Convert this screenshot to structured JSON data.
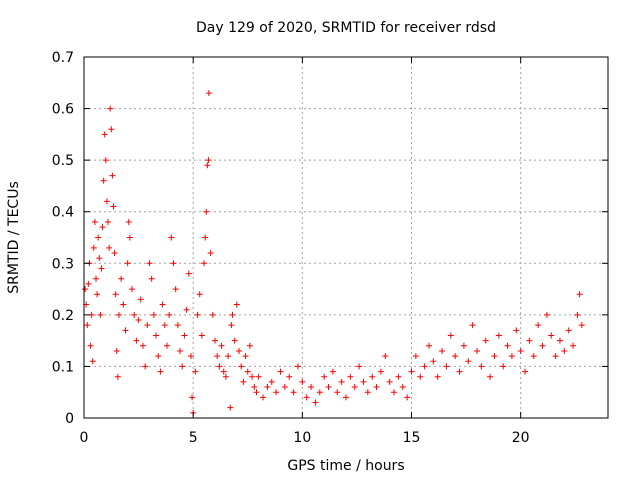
{
  "chart_data": {
    "type": "scatter",
    "title": "Day 129 of 2020, SRMTID for receiver rdsd",
    "xlabel": "GPS time / hours",
    "ylabel": "SRMTID / TECUs",
    "xlim": [
      0,
      24
    ],
    "ylim": [
      0,
      0.7
    ],
    "xticks": [
      0,
      5,
      10,
      15,
      20
    ],
    "xtick_labels": [
      "0",
      "5",
      "10",
      "15",
      "20"
    ],
    "yticks": [
      0,
      0.1,
      0.2,
      0.3,
      0.4,
      0.5,
      0.6,
      0.7
    ],
    "ytick_labels": [
      "0",
      "0.1",
      "0.2",
      "0.3",
      "0.4",
      "0.5",
      "0.6",
      "0.7"
    ],
    "grid": true,
    "marker": "+",
    "colors": {
      "series": "#ff0000",
      "grid": "#a0a0a0",
      "axis": "#000000"
    },
    "series": [
      {
        "name": "SRMTID",
        "points": [
          [
            0.05,
            0.25
          ],
          [
            0.1,
            0.22
          ],
          [
            0.15,
            0.18
          ],
          [
            0.2,
            0.26
          ],
          [
            0.25,
            0.3
          ],
          [
            0.3,
            0.14
          ],
          [
            0.35,
            0.2
          ],
          [
            0.4,
            0.11
          ],
          [
            0.45,
            0.33
          ],
          [
            0.5,
            0.38
          ],
          [
            0.55,
            0.27
          ],
          [
            0.6,
            0.24
          ],
          [
            0.65,
            0.35
          ],
          [
            0.7,
            0.31
          ],
          [
            0.75,
            0.2
          ],
          [
            0.8,
            0.29
          ],
          [
            0.85,
            0.37
          ],
          [
            0.9,
            0.46
          ],
          [
            0.95,
            0.55
          ],
          [
            1.0,
            0.5
          ],
          [
            1.05,
            0.42
          ],
          [
            1.1,
            0.38
          ],
          [
            1.15,
            0.33
          ],
          [
            1.2,
            0.6
          ],
          [
            1.25,
            0.56
          ],
          [
            1.3,
            0.47
          ],
          [
            1.35,
            0.41
          ],
          [
            1.4,
            0.32
          ],
          [
            1.45,
            0.24
          ],
          [
            1.5,
            0.13
          ],
          [
            1.55,
            0.08
          ],
          [
            1.6,
            0.2
          ],
          [
            1.7,
            0.27
          ],
          [
            1.8,
            0.22
          ],
          [
            1.9,
            0.17
          ],
          [
            2.0,
            0.3
          ],
          [
            2.05,
            0.38
          ],
          [
            2.1,
            0.35
          ],
          [
            2.2,
            0.25
          ],
          [
            2.3,
            0.2
          ],
          [
            2.4,
            0.15
          ],
          [
            2.5,
            0.19
          ],
          [
            2.6,
            0.23
          ],
          [
            2.7,
            0.14
          ],
          [
            2.8,
            0.1
          ],
          [
            2.9,
            0.18
          ],
          [
            3.0,
            0.3
          ],
          [
            3.1,
            0.27
          ],
          [
            3.2,
            0.2
          ],
          [
            3.3,
            0.16
          ],
          [
            3.4,
            0.12
          ],
          [
            3.5,
            0.09
          ],
          [
            3.6,
            0.22
          ],
          [
            3.7,
            0.18
          ],
          [
            3.8,
            0.14
          ],
          [
            3.9,
            0.2
          ],
          [
            4.0,
            0.35
          ],
          [
            4.1,
            0.3
          ],
          [
            4.2,
            0.25
          ],
          [
            4.3,
            0.18
          ],
          [
            4.4,
            0.13
          ],
          [
            4.5,
            0.1
          ],
          [
            4.6,
            0.16
          ],
          [
            4.7,
            0.21
          ],
          [
            4.8,
            0.28
          ],
          [
            4.9,
            0.12
          ],
          [
            4.95,
            0.04
          ],
          [
            5.0,
            0.01
          ],
          [
            5.1,
            0.09
          ],
          [
            5.2,
            0.2
          ],
          [
            5.3,
            0.24
          ],
          [
            5.4,
            0.16
          ],
          [
            5.5,
            0.3
          ],
          [
            5.55,
            0.35
          ],
          [
            5.6,
            0.4
          ],
          [
            5.65,
            0.49
          ],
          [
            5.7,
            0.5
          ],
          [
            5.72,
            0.63
          ],
          [
            5.8,
            0.32
          ],
          [
            5.9,
            0.2
          ],
          [
            6.0,
            0.15
          ],
          [
            6.1,
            0.12
          ],
          [
            6.2,
            0.1
          ],
          [
            6.3,
            0.14
          ],
          [
            6.4,
            0.09
          ],
          [
            6.5,
            0.08
          ],
          [
            6.6,
            0.12
          ],
          [
            6.7,
            0.02
          ],
          [
            6.75,
            0.18
          ],
          [
            6.8,
            0.2
          ],
          [
            6.9,
            0.15
          ],
          [
            7.0,
            0.22
          ],
          [
            7.1,
            0.13
          ],
          [
            7.2,
            0.1
          ],
          [
            7.3,
            0.07
          ],
          [
            7.4,
            0.12
          ],
          [
            7.5,
            0.09
          ],
          [
            7.6,
            0.14
          ],
          [
            7.7,
            0.08
          ],
          [
            7.8,
            0.06
          ],
          [
            7.9,
            0.05
          ],
          [
            8.0,
            0.08
          ],
          [
            8.2,
            0.04
          ],
          [
            8.4,
            0.06
          ],
          [
            8.6,
            0.07
          ],
          [
            8.8,
            0.05
          ],
          [
            9.0,
            0.09
          ],
          [
            9.2,
            0.06
          ],
          [
            9.4,
            0.08
          ],
          [
            9.6,
            0.05
          ],
          [
            9.8,
            0.1
          ],
          [
            10.0,
            0.07
          ],
          [
            10.2,
            0.04
          ],
          [
            10.4,
            0.06
          ],
          [
            10.6,
            0.03
          ],
          [
            10.8,
            0.05
          ],
          [
            11.0,
            0.08
          ],
          [
            11.2,
            0.06
          ],
          [
            11.4,
            0.09
          ],
          [
            11.6,
            0.05
          ],
          [
            11.8,
            0.07
          ],
          [
            12.0,
            0.04
          ],
          [
            12.2,
            0.08
          ],
          [
            12.4,
            0.06
          ],
          [
            12.6,
            0.1
          ],
          [
            12.8,
            0.07
          ],
          [
            13.0,
            0.05
          ],
          [
            13.2,
            0.08
          ],
          [
            13.4,
            0.06
          ],
          [
            13.6,
            0.09
          ],
          [
            13.8,
            0.12
          ],
          [
            14.0,
            0.07
          ],
          [
            14.2,
            0.05
          ],
          [
            14.4,
            0.08
          ],
          [
            14.6,
            0.06
          ],
          [
            14.8,
            0.04
          ],
          [
            15.0,
            0.09
          ],
          [
            15.2,
            0.12
          ],
          [
            15.4,
            0.08
          ],
          [
            15.6,
            0.1
          ],
          [
            15.8,
            0.14
          ],
          [
            16.0,
            0.11
          ],
          [
            16.2,
            0.08
          ],
          [
            16.4,
            0.13
          ],
          [
            16.6,
            0.1
          ],
          [
            16.8,
            0.16
          ],
          [
            17.0,
            0.12
          ],
          [
            17.2,
            0.09
          ],
          [
            17.4,
            0.14
          ],
          [
            17.6,
            0.11
          ],
          [
            17.8,
            0.18
          ],
          [
            18.0,
            0.13
          ],
          [
            18.2,
            0.1
          ],
          [
            18.4,
            0.15
          ],
          [
            18.6,
            0.08
          ],
          [
            18.8,
            0.12
          ],
          [
            19.0,
            0.16
          ],
          [
            19.2,
            0.1
          ],
          [
            19.4,
            0.14
          ],
          [
            19.6,
            0.12
          ],
          [
            19.8,
            0.17
          ],
          [
            20.0,
            0.13
          ],
          [
            20.2,
            0.09
          ],
          [
            20.4,
            0.15
          ],
          [
            20.6,
            0.12
          ],
          [
            20.8,
            0.18
          ],
          [
            21.0,
            0.14
          ],
          [
            21.2,
            0.2
          ],
          [
            21.4,
            0.16
          ],
          [
            21.6,
            0.12
          ],
          [
            21.8,
            0.15
          ],
          [
            22.0,
            0.13
          ],
          [
            22.2,
            0.17
          ],
          [
            22.4,
            0.14
          ],
          [
            22.6,
            0.2
          ],
          [
            22.7,
            0.24
          ],
          [
            22.8,
            0.18
          ]
        ]
      }
    ]
  }
}
